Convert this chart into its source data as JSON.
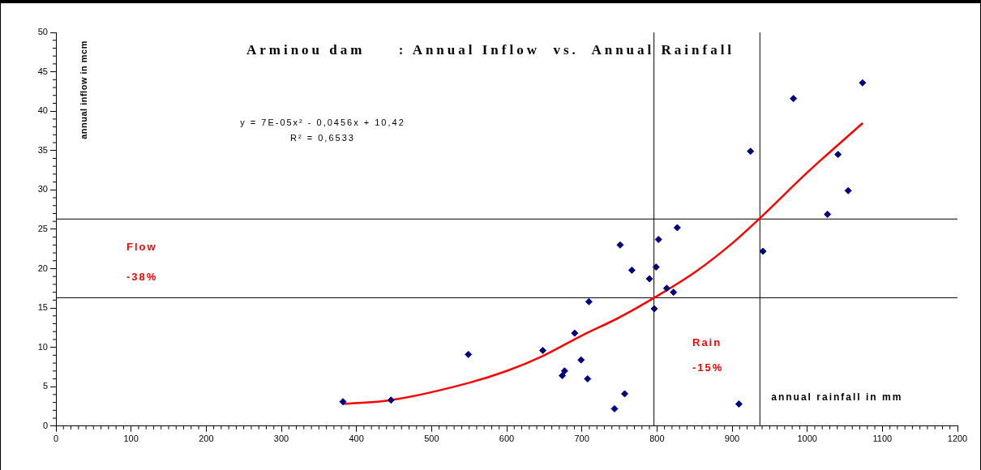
{
  "chart_data": {
    "type": "scatter",
    "title": "Arminou dam     : Annual Inflow  vs.  Annual Rainfall",
    "xlabel": "annual rainfall in mm",
    "ylabel": "annual inflow in mcm",
    "series": [
      {
        "color": "#000080",
        "marker": "diamond",
        "x": [
          382,
          446,
          549,
          648,
          674,
          677,
          690.5,
          699,
          707.7,
          709.4,
          743.5,
          751,
          757,
          766.5,
          790,
          796.4,
          798.8,
          802,
          813,
          822,
          827,
          909,
          924.5,
          941,
          981.7,
          1027,
          1041,
          1054.5,
          1073.6
        ],
        "values": [
          3.1,
          3.3,
          9.1,
          9.6,
          6.4,
          7.0,
          11.8,
          8.4,
          6.0,
          15.8,
          2.2,
          23.0,
          4.1,
          19.8,
          18.7,
          14.9,
          20.2,
          23.7,
          17.5,
          17.0,
          25.2,
          2.8,
          34.9,
          22.2,
          41.6,
          26.9,
          34.5,
          29.9,
          43.6
        ]
      },
      {
        "type": "line",
        "color": "#ff0000",
        "marker": "none",
        "line_style": "solid",
        "x": [
          382,
          446,
          550,
          600,
          648,
          700,
          750,
          796.4,
          850,
          900,
          937,
          1000,
          1074
        ],
        "values": [
          2.8,
          3.3,
          5.5,
          7.0,
          8.9,
          11.5,
          13.8,
          16.3,
          19.5,
          23.2,
          26.4,
          32.2,
          38.5
        ]
      }
    ],
    "xlim": [
      0,
      1200
    ],
    "xticks": [
      0,
      100,
      200,
      300,
      400,
      500,
      600,
      700,
      800,
      900,
      1000,
      1100,
      1200
    ],
    "ylim": [
      0,
      50
    ],
    "yticks": [
      0,
      5,
      10,
      15,
      20,
      25,
      30,
      35,
      40,
      45,
      50
    ],
    "grid": false,
    "legend": false,
    "ref_lines": [
      {
        "axis": "y",
        "value": 26.3,
        "color": "#000000"
      },
      {
        "axis": "y",
        "value": 16.3,
        "color": "#000000"
      },
      {
        "axis": "x",
        "value": 796,
        "color": "#000000"
      },
      {
        "axis": "x",
        "value": 937,
        "color": "#000000"
      }
    ],
    "annotations": [
      "y = 7E-05x² - 0,0456x + 10,42",
      "R² = 0,6533",
      "Flow",
      "-38%",
      "Rain",
      "-15%"
    ]
  }
}
